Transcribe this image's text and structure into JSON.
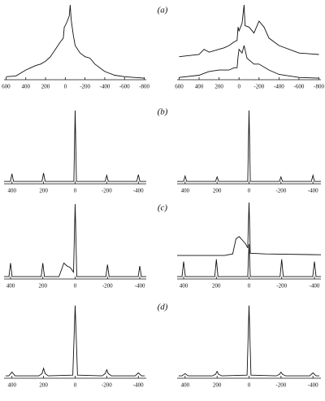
{
  "chart_data": [
    {
      "type": "line",
      "title": "(a)",
      "xlim": [
        620,
        -820
      ],
      "ylim": [
        0,
        100
      ],
      "xticks": [
        600,
        400,
        200,
        0,
        -200,
        -400,
        -600,
        -800
      ],
      "series": [
        {
          "color": "#111111",
          "x": [
            600,
            500,
            400,
            350,
            300,
            250,
            200,
            150,
            100,
            50,
            20,
            10,
            0,
            -20,
            -40,
            -50,
            -60,
            -80,
            -100,
            -150,
            -200,
            -250,
            -300,
            -400,
            -500,
            -600,
            -700,
            -800
          ],
          "values": [
            3,
            4,
            12,
            15,
            18,
            20,
            24,
            30,
            40,
            50,
            55,
            70,
            72,
            78,
            85,
            100,
            80,
            60,
            45,
            35,
            30,
            28,
            20,
            10,
            5,
            3,
            2,
            1
          ]
        }
      ]
    },
    {
      "type": "line",
      "xlim": [
        620,
        -820
      ],
      "ylim": [
        0,
        100
      ],
      "xticks": [
        600,
        400,
        200,
        0,
        -200,
        -400,
        -600,
        -800
      ],
      "series": [
        {
          "color": "#111111",
          "x": [
            600,
            400,
            350,
            300,
            200,
            150,
            100,
            50,
            20,
            10,
            0,
            -30,
            -50,
            -60,
            -100,
            -150,
            -200,
            -250,
            -300,
            -400,
            -600,
            -800
          ],
          "values": [
            30,
            33,
            40,
            36,
            40,
            42,
            45,
            50,
            52,
            70,
            65,
            75,
            100,
            72,
            70,
            62,
            78,
            70,
            55,
            45,
            35,
            33
          ]
        },
        {
          "color": "#111111",
          "x": [
            600,
            400,
            300,
            200,
            100,
            50,
            20,
            10,
            0,
            -30,
            -50,
            -80,
            -150,
            -200,
            -300,
            -400,
            -600,
            -800
          ],
          "values": [
            2,
            5,
            10,
            12,
            12,
            15,
            15,
            30,
            40,
            35,
            45,
            28,
            20,
            20,
            12,
            6,
            2,
            1
          ]
        }
      ]
    },
    {
      "type": "line",
      "title": "(b)",
      "xlim": [
        450,
        -450
      ],
      "ylim": [
        0,
        100
      ],
      "xticks": [
        400,
        200,
        0,
        -200,
        -400
      ],
      "series": [
        {
          "color": "#111111",
          "x": [
            450,
            410,
            400,
            390,
            210,
            200,
            190,
            8,
            0,
            -8,
            -190,
            -200,
            -210,
            -390,
            -400,
            -410,
            -450
          ],
          "values": [
            2,
            2,
            12,
            2,
            2,
            13,
            2,
            2,
            95,
            2,
            2,
            10,
            2,
            2,
            11,
            2,
            2
          ]
        }
      ]
    },
    {
      "type": "line",
      "xlim": [
        450,
        -450
      ],
      "ylim": [
        0,
        100
      ],
      "xticks": [
        400,
        200,
        0,
        -200,
        -400
      ],
      "series": [
        {
          "color": "#111111",
          "x": [
            450,
            410,
            400,
            390,
            210,
            200,
            190,
            8,
            0,
            -8,
            -190,
            -200,
            -210,
            -390,
            -400,
            -410,
            -450
          ],
          "values": [
            2,
            2,
            9,
            2,
            2,
            8,
            2,
            2,
            95,
            2,
            2,
            8,
            2,
            2,
            10,
            2,
            2
          ]
        }
      ]
    },
    {
      "type": "line",
      "title": "(c)",
      "xlim": [
        440,
        -440
      ],
      "ylim": [
        0,
        100
      ],
      "xticks": [
        400,
        200,
        0,
        -200,
        -400
      ],
      "series": [
        {
          "color": "#111111",
          "x": [
            440,
            410,
            400,
            390,
            210,
            200,
            190,
            100,
            70,
            50,
            30,
            10,
            0,
            -10,
            -190,
            -200,
            -210,
            -390,
            -400,
            -410,
            -440
          ],
          "values": [
            2,
            2,
            20,
            2,
            2,
            20,
            2,
            2,
            20,
            16,
            14,
            8,
            98,
            2,
            2,
            18,
            2,
            2,
            16,
            2,
            2
          ]
        }
      ]
    },
    {
      "type": "line",
      "xlim": [
        440,
        -440
      ],
      "ylim": [
        0,
        100
      ],
      "xticks": [
        400,
        200,
        0,
        -200,
        -400
      ],
      "series": [
        {
          "color": "#111111",
          "x": [
            440,
            150,
            100,
            80,
            60,
            40,
            20,
            8,
            0,
            -8,
            -100,
            -440
          ],
          "values": [
            30,
            30,
            32,
            52,
            55,
            50,
            45,
            40,
            100,
            33,
            32,
            31
          ]
        },
        {
          "color": "#111111",
          "x": [
            440,
            410,
            400,
            390,
            210,
            200,
            190,
            8,
            0,
            -8,
            -190,
            -200,
            -210,
            -390,
            -400,
            -410,
            -440
          ],
          "values": [
            2,
            2,
            22,
            2,
            2,
            25,
            2,
            2,
            45,
            2,
            2,
            25,
            2,
            2,
            22,
            2,
            2
          ]
        }
      ]
    },
    {
      "type": "line",
      "title": "(d)",
      "xlim": [
        450,
        -450
      ],
      "ylim": [
        0,
        100
      ],
      "xticks": [
        400,
        200,
        0,
        -200,
        -400
      ],
      "series": [
        {
          "color": "#111111",
          "x": [
            440,
            420,
            400,
            380,
            230,
            210,
            200,
            190,
            170,
            15,
            0,
            -15,
            -170,
            -190,
            -200,
            -210,
            -230,
            -380,
            -400,
            -420,
            -440
          ],
          "values": [
            2,
            2,
            7,
            2,
            2,
            5,
            12,
            5,
            2,
            3,
            95,
            3,
            2,
            5,
            10,
            5,
            2,
            2,
            6,
            2,
            2
          ]
        }
      ]
    },
    {
      "type": "line",
      "xlim": [
        450,
        -450
      ],
      "ylim": [
        0,
        100
      ],
      "xticks": [
        400,
        200,
        0,
        -200,
        -400
      ],
      "series": [
        {
          "color": "#111111",
          "x": [
            440,
            420,
            400,
            380,
            230,
            210,
            200,
            190,
            170,
            12,
            0,
            -12,
            -170,
            -190,
            -200,
            -210,
            -230,
            -380,
            -400,
            -420,
            -440
          ],
          "values": [
            2,
            2,
            5,
            2,
            2,
            4,
            8,
            4,
            2,
            3,
            95,
            3,
            2,
            4,
            7,
            4,
            2,
            2,
            6,
            2,
            2
          ]
        }
      ]
    }
  ]
}
